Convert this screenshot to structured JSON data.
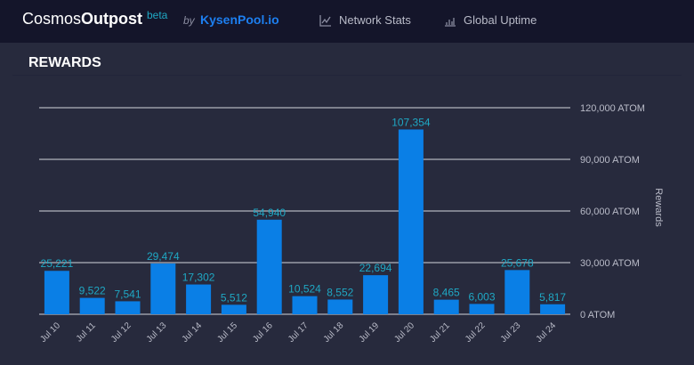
{
  "header": {
    "brand_light": "Cosmos",
    "brand_bold": "Outpost",
    "beta": "beta",
    "by": "by",
    "partner": "KysenPool.io",
    "nav": [
      {
        "label": "Network Stats",
        "icon": "line-chart-icon"
      },
      {
        "label": "Global Uptime",
        "icon": "bar-chart-icon"
      }
    ]
  },
  "section_title": "REWARDS",
  "chart_data": {
    "type": "bar",
    "title": "REWARDS",
    "ylabel": "Rewards",
    "xlabel": "",
    "categories": [
      "Jul 10",
      "Jul 11",
      "Jul 12",
      "Jul 13",
      "Jul 14",
      "Jul 15",
      "Jul 16",
      "Jul 17",
      "Jul 18",
      "Jul 19",
      "Jul 20",
      "Jul 21",
      "Jul 22",
      "Jul 23",
      "Jul 24"
    ],
    "values": [
      25221,
      9522,
      7541,
      29474,
      17302,
      5512,
      54940,
      10524,
      8552,
      22694,
      107354,
      8465,
      6003,
      25678,
      5817
    ],
    "labels": [
      "25,221",
      "9,522",
      "7,541",
      "29,474",
      "17,302",
      "5,512",
      "54,940",
      "10,524",
      "8,552",
      "22,694",
      "107,354",
      "8,465",
      "6,003",
      "25,678",
      "5,817"
    ],
    "ylim": [
      0,
      120000
    ],
    "yticks": [
      0,
      30000,
      60000,
      90000,
      120000
    ],
    "ytick_labels": [
      "0 ATOM",
      "30,000 ATOM",
      "60,000 ATOM",
      "90,000 ATOM",
      "120,000 ATOM"
    ],
    "grid": true,
    "bar_color": "#0a7fe6",
    "label_color": "#1fa8c4"
  }
}
